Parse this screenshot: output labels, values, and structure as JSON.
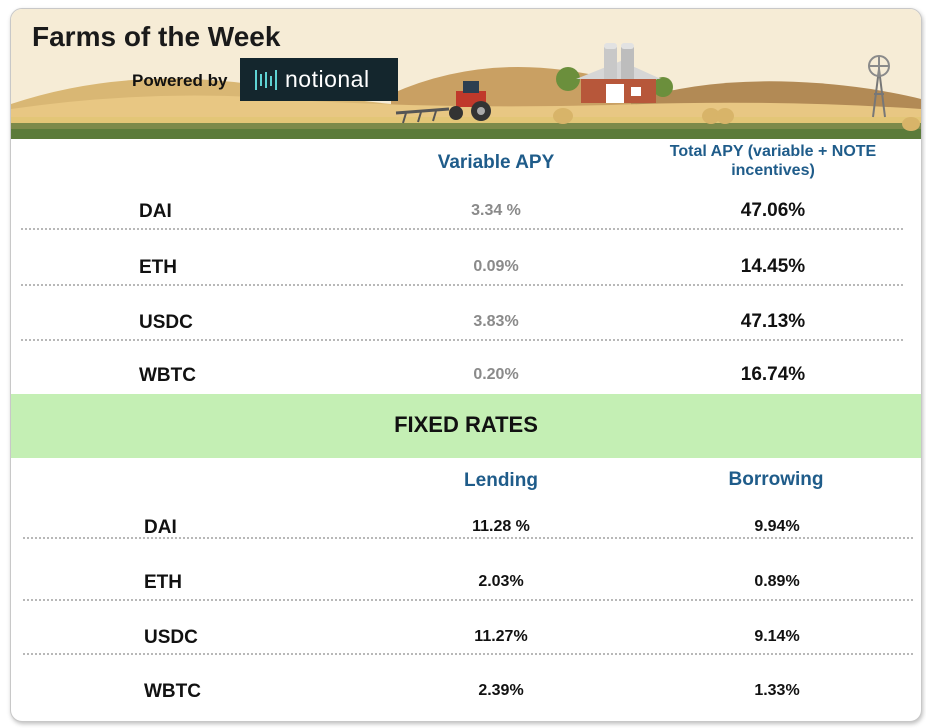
{
  "header": {
    "title": "Farms of the Week",
    "powered_by": "Powered by",
    "logo_text": "notional"
  },
  "variable": {
    "col1": "Variable APY",
    "col2": "Total APY (variable + NOTE incentives)",
    "rows": [
      {
        "asset": "DAI",
        "variable": "3.34 %",
        "total": "47.06%"
      },
      {
        "asset": "ETH",
        "variable": "0.09%",
        "total": "14.45%"
      },
      {
        "asset": "USDC",
        "variable": "3.83%",
        "total": "47.13%"
      },
      {
        "asset": "WBTC",
        "variable": "0.20%",
        "total": "16.74%"
      }
    ]
  },
  "fixed": {
    "heading": "FIXED RATES",
    "col1": "Lending",
    "col2": "Borrowing",
    "rows": [
      {
        "asset": "DAI",
        "lending": "11.28 %",
        "borrowing": "9.94%"
      },
      {
        "asset": "ETH",
        "lending": "2.03%",
        "borrowing": "0.89%"
      },
      {
        "asset": "USDC",
        "lending": "11.27%",
        "borrowing": "9.14%"
      },
      {
        "asset": "WBTC",
        "lending": "2.39%",
        "borrowing": "1.33%"
      }
    ]
  },
  "colors": {
    "header_blue": "#1f5c8a",
    "fixed_band": "#c4efb4",
    "variable_grey": "#8a8a8a"
  }
}
